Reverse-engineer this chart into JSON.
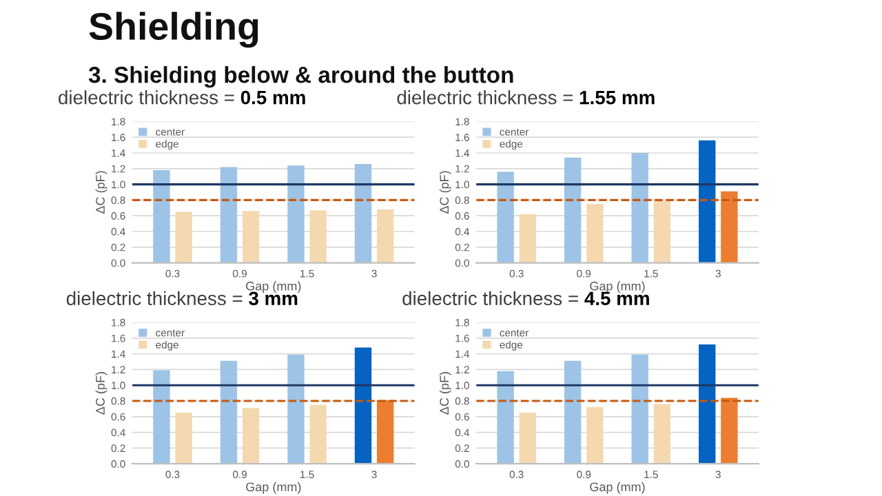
{
  "chart_data": [
    {
      "type": "bar",
      "title": "dielectric thickness = 0.5 mm",
      "annotations": [
        "Shielding",
        "3. Shielding below & around the button"
      ],
      "xlabel": "Gap (mm)",
      "ylabel": "ΔC (pF)",
      "categories": [
        "0.3",
        "0.9",
        "1.5",
        "3"
      ],
      "series": [
        {
          "name": "center",
          "color": "#9dc3e6",
          "colors": [
            "#9dc3e6",
            "#9dc3e6",
            "#9dc3e6",
            "#9dc3e6"
          ],
          "values": [
            1.18,
            1.22,
            1.24,
            1.26
          ]
        },
        {
          "name": "edge",
          "color": "#f4d9b0",
          "colors": [
            "#f4d9b0",
            "#f4d9b0",
            "#f4d9b0",
            "#f4d9b0"
          ],
          "values": [
            0.65,
            0.66,
            0.67,
            0.68
          ]
        }
      ],
      "ylim": [
        0,
        1.8
      ],
      "yticks": [
        {
          "value": 0,
          "label": "0.0"
        },
        {
          "value": 0.2,
          "label": "0.2"
        },
        {
          "value": 0.4,
          "label": "0.4"
        },
        {
          "value": 0.6,
          "label": "0.6"
        },
        {
          "value": 0.8,
          "label": "0.8"
        },
        {
          "value": 1.0,
          "label": "1.0"
        },
        {
          "value": 1.2,
          "label": "1.2"
        },
        {
          "value": 1.4,
          "label": "1.4"
        },
        {
          "value": 1.6,
          "label": "1.6"
        },
        {
          "value": 1.8,
          "label": "1.8"
        }
      ],
      "ref_lines": [
        {
          "axis": "y",
          "value": 1.0,
          "color": "#1f3864",
          "line_style": "solid"
        },
        {
          "axis": "y",
          "value": 0.8,
          "color": "#c55a11",
          "line_style": "dashed"
        }
      ],
      "grid": "y",
      "legend": "top left"
    },
    {
      "type": "bar",
      "title": "dielectric thickness = 1.55 mm",
      "xlabel": "Gap (mm)",
      "ylabel": "ΔC (pF)",
      "categories": [
        "0.3",
        "0.9",
        "1.5",
        "3"
      ],
      "series": [
        {
          "name": "center",
          "color": "#9dc3e6",
          "colors": [
            "#9dc3e6",
            "#9dc3e6",
            "#9dc3e6",
            "#0563c1"
          ],
          "values": [
            1.16,
            1.34,
            1.4,
            1.56
          ]
        },
        {
          "name": "edge",
          "color": "#f4d9b0",
          "colors": [
            "#f4d9b0",
            "#f4d9b0",
            "#f4d9b0",
            "#ed7d31"
          ],
          "values": [
            0.62,
            0.75,
            0.79,
            0.91
          ]
        }
      ],
      "ylim": [
        0,
        1.8
      ],
      "yticks": [
        {
          "value": 0,
          "label": "0.0"
        },
        {
          "value": 0.2,
          "label": "0.2"
        },
        {
          "value": 0.4,
          "label": "0.4"
        },
        {
          "value": 0.6,
          "label": "0.6"
        },
        {
          "value": 0.8,
          "label": "0.8"
        },
        {
          "value": 1.0,
          "label": "1.0"
        },
        {
          "value": 1.2,
          "label": "1.2"
        },
        {
          "value": 1.4,
          "label": "1.4"
        },
        {
          "value": 1.6,
          "label": "1.6"
        },
        {
          "value": 1.8,
          "label": "1.8"
        }
      ],
      "ref_lines": [
        {
          "axis": "y",
          "value": 1.0,
          "color": "#1f3864",
          "line_style": "solid"
        },
        {
          "axis": "y",
          "value": 0.8,
          "color": "#c55a11",
          "line_style": "dashed"
        }
      ],
      "grid": "y",
      "legend": "top left"
    },
    {
      "type": "bar",
      "title": "dielectric thickness = 3 mm",
      "xlabel": "Gap (mm)",
      "ylabel": "ΔC (pF)",
      "categories": [
        "0.3",
        "0.9",
        "1.5",
        "3"
      ],
      "series": [
        {
          "name": "center",
          "color": "#9dc3e6",
          "colors": [
            "#9dc3e6",
            "#9dc3e6",
            "#9dc3e6",
            "#0563c1"
          ],
          "values": [
            1.19,
            1.31,
            1.39,
            1.48
          ]
        },
        {
          "name": "edge",
          "color": "#f4d9b0",
          "colors": [
            "#f4d9b0",
            "#f4d9b0",
            "#f4d9b0",
            "#ed7d31"
          ],
          "values": [
            0.65,
            0.71,
            0.75,
            0.81
          ]
        }
      ],
      "ylim": [
        0,
        1.8
      ],
      "yticks": [
        {
          "value": 0,
          "label": "0.0"
        },
        {
          "value": 0.2,
          "label": "0.2"
        },
        {
          "value": 0.4,
          "label": "0.4"
        },
        {
          "value": 0.6,
          "label": "0.6"
        },
        {
          "value": 0.8,
          "label": "0.8"
        },
        {
          "value": 1.0,
          "label": "1.0"
        },
        {
          "value": 1.2,
          "label": "1.2"
        },
        {
          "value": 1.4,
          "label": "1.4"
        },
        {
          "value": 1.6,
          "label": "1.6"
        },
        {
          "value": 1.8,
          "label": "1.8"
        }
      ],
      "ref_lines": [
        {
          "axis": "y",
          "value": 1.0,
          "color": "#1f3864",
          "line_style": "solid"
        },
        {
          "axis": "y",
          "value": 0.8,
          "color": "#c55a11",
          "line_style": "dashed"
        }
      ],
      "grid": "y",
      "legend": "top left"
    },
    {
      "type": "bar",
      "title": "dielectric thickness = 4.5 mm",
      "xlabel": "Gap (mm)",
      "ylabel": "ΔC (pF)",
      "categories": [
        "0.3",
        "0.9",
        "1.5",
        "3"
      ],
      "series": [
        {
          "name": "center",
          "color": "#9dc3e6",
          "colors": [
            "#9dc3e6",
            "#9dc3e6",
            "#9dc3e6",
            "#0563c1"
          ],
          "values": [
            1.18,
            1.31,
            1.39,
            1.52
          ]
        },
        {
          "name": "edge",
          "color": "#f4d9b0",
          "colors": [
            "#f4d9b0",
            "#f4d9b0",
            "#f4d9b0",
            "#ed7d31"
          ],
          "values": [
            0.65,
            0.72,
            0.76,
            0.84
          ]
        }
      ],
      "ylim": [
        0,
        1.8
      ],
      "yticks": [
        {
          "value": 0,
          "label": "0.0"
        },
        {
          "value": 0.2,
          "label": "0.2"
        },
        {
          "value": 0.4,
          "label": "0.4"
        },
        {
          "value": 0.6,
          "label": "0.6"
        },
        {
          "value": 0.8,
          "label": "0.8"
        },
        {
          "value": 1.0,
          "label": "1.0"
        },
        {
          "value": 1.2,
          "label": "1.2"
        },
        {
          "value": 1.4,
          "label": "1.4"
        },
        {
          "value": 1.6,
          "label": "1.6"
        },
        {
          "value": 1.8,
          "label": "1.8"
        }
      ],
      "ref_lines": [
        {
          "axis": "y",
          "value": 1.0,
          "color": "#1f3864",
          "line_style": "solid"
        },
        {
          "axis": "y",
          "value": 0.8,
          "color": "#c55a11",
          "line_style": "dashed"
        }
      ],
      "grid": "y",
      "legend": "top left"
    }
  ]
}
